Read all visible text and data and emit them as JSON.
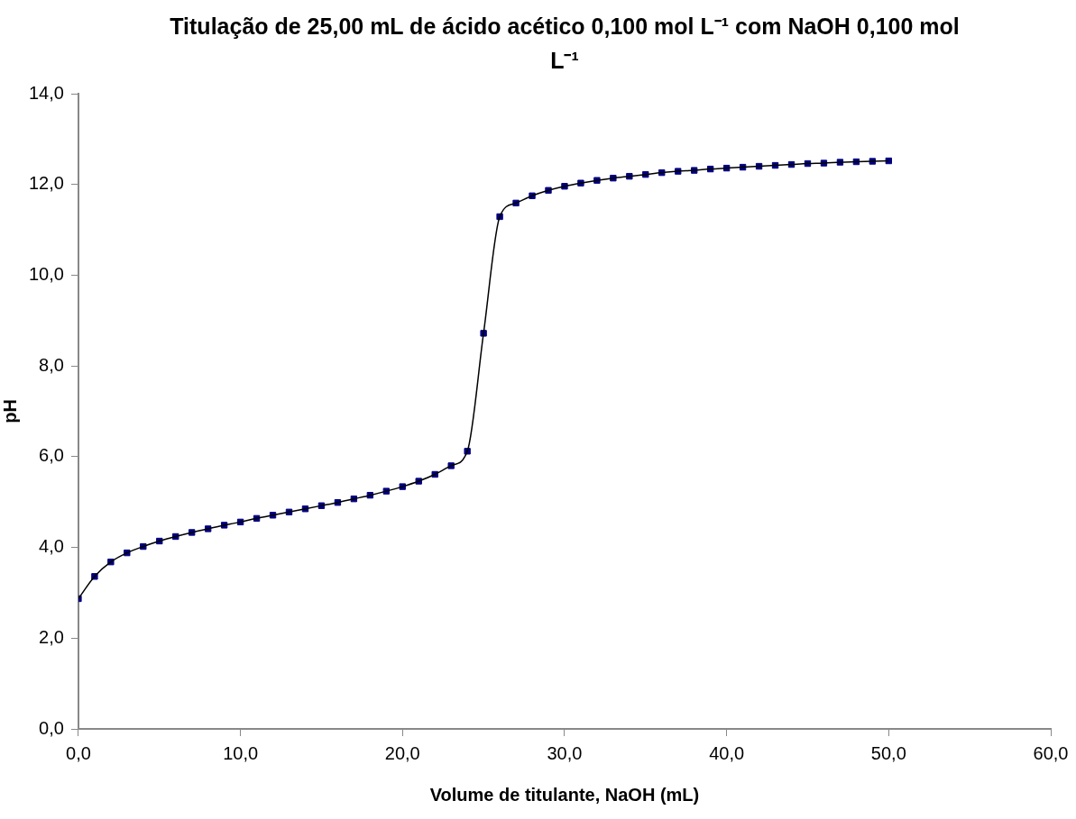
{
  "chart_data": {
    "type": "line",
    "title": "Titulação de 25,00 mL de ácido acético 0,100 mol L⁻¹ com NaOH 0,100 mol L⁻¹",
    "xlabel": "Volume de titulante, NaOH (mL)",
    "ylabel": "pH",
    "x": [
      0,
      1,
      2,
      3,
      4,
      5,
      6,
      7,
      8,
      9,
      10,
      11,
      12,
      13,
      14,
      15,
      16,
      17,
      18,
      19,
      20,
      21,
      22,
      23,
      24,
      25,
      26,
      27,
      28,
      29,
      30,
      31,
      32,
      33,
      34,
      35,
      36,
      37,
      38,
      39,
      40,
      41,
      42,
      43,
      44,
      45,
      46,
      47,
      48,
      49,
      50
    ],
    "series": [
      {
        "type": "line",
        "color": "#000000",
        "marker": "none",
        "values": [
          2.87,
          3.36,
          3.68,
          3.88,
          4.02,
          4.14,
          4.24,
          4.33,
          4.41,
          4.49,
          4.56,
          4.64,
          4.71,
          4.78,
          4.85,
          4.92,
          4.99,
          5.07,
          5.15,
          5.24,
          5.34,
          5.46,
          5.61,
          5.8,
          6.12,
          8.72,
          11.29,
          11.59,
          11.75,
          11.87,
          11.96,
          12.03,
          12.09,
          12.14,
          12.18,
          12.22,
          12.26,
          12.29,
          12.31,
          12.34,
          12.36,
          12.38,
          12.4,
          12.42,
          12.44,
          12.46,
          12.47,
          12.49,
          12.5,
          12.51,
          12.52
        ]
      },
      {
        "type": "scatter",
        "color": "#000080",
        "marker": "square",
        "values": [
          2.87,
          3.36,
          3.68,
          3.88,
          4.02,
          4.14,
          4.24,
          4.33,
          4.41,
          4.49,
          4.56,
          4.64,
          4.71,
          4.78,
          4.85,
          4.92,
          4.99,
          5.07,
          5.15,
          5.24,
          5.34,
          5.46,
          5.61,
          5.8,
          6.12,
          8.72,
          11.29,
          11.59,
          11.75,
          11.87,
          11.96,
          12.03,
          12.09,
          12.14,
          12.18,
          12.22,
          12.26,
          12.29,
          12.31,
          12.34,
          12.36,
          12.38,
          12.4,
          12.42,
          12.44,
          12.46,
          12.47,
          12.49,
          12.5,
          12.51,
          12.52
        ]
      }
    ],
    "xlim": [
      0,
      60
    ],
    "xticks": [
      {
        "value": 0,
        "label": "0,0"
      },
      {
        "value": 10,
        "label": "10,0"
      },
      {
        "value": 20,
        "label": "20,0"
      },
      {
        "value": 30,
        "label": "30,0"
      },
      {
        "value": 40,
        "label": "40,0"
      },
      {
        "value": 50,
        "label": "50,0"
      },
      {
        "value": 60,
        "label": "60,0"
      }
    ],
    "ylim": [
      0,
      14
    ],
    "yticks": [
      {
        "value": 0,
        "label": "0,0"
      },
      {
        "value": 2,
        "label": "2,0"
      },
      {
        "value": 4,
        "label": "4,0"
      },
      {
        "value": 6,
        "label": "6,0"
      },
      {
        "value": 8,
        "label": "8,0"
      },
      {
        "value": 10,
        "label": "10,0"
      },
      {
        "value": 12,
        "label": "12,0"
      },
      {
        "value": 14,
        "label": "14,0"
      }
    ],
    "grid": false,
    "legend": false
  }
}
